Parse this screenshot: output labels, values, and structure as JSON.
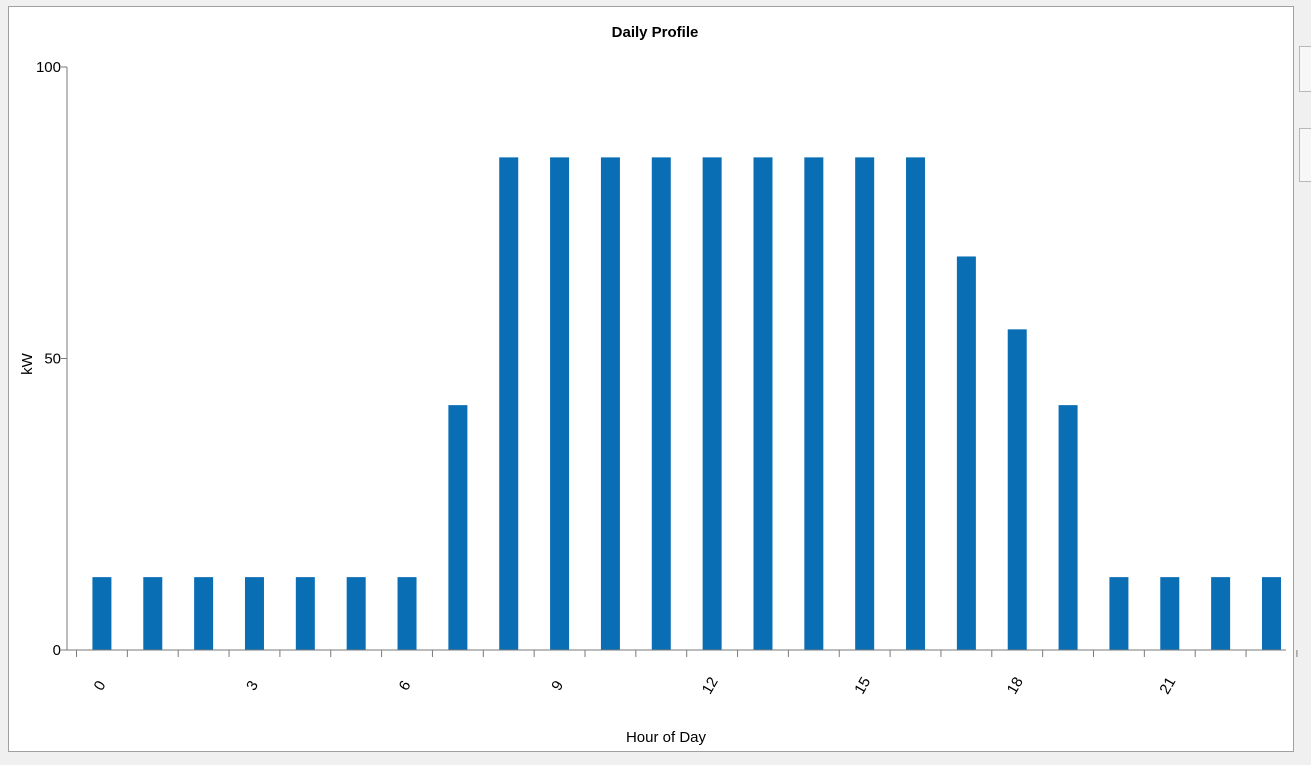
{
  "chart_data": {
    "type": "bar",
    "title": "Daily Profile",
    "xlabel": "Hour of Day",
    "ylabel": "kW",
    "categories": [
      0,
      1,
      2,
      3,
      4,
      5,
      6,
      7,
      8,
      9,
      10,
      11,
      12,
      13,
      14,
      15,
      16,
      17,
      18,
      19,
      20,
      21,
      22,
      23
    ],
    "x_tick_labels": [
      "0",
      "3",
      "6",
      "9",
      "12",
      "15",
      "18",
      "21"
    ],
    "y_tick_labels": [
      "0",
      "50",
      "100"
    ],
    "values": [
      12.5,
      12.5,
      12.5,
      12.5,
      12.5,
      12.5,
      12.5,
      42,
      84.5,
      84.5,
      84.5,
      84.5,
      84.5,
      84.5,
      84.5,
      84.5,
      84.5,
      67.5,
      55,
      42,
      12.5,
      12.5,
      12.5,
      12.5
    ],
    "ylim": [
      0,
      100
    ],
    "grid": false,
    "bar_color": "#0a6eb4"
  }
}
